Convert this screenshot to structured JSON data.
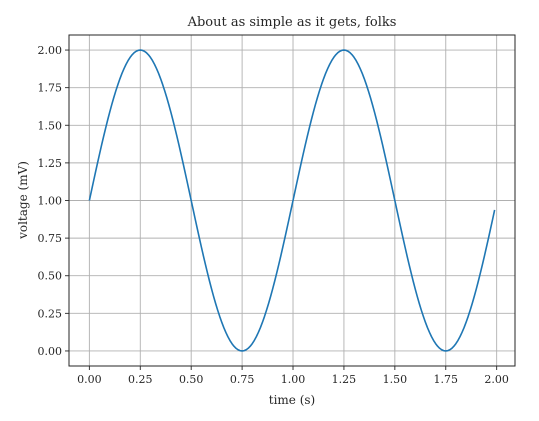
{
  "chart_data": {
    "type": "line",
    "title": "About as simple as it gets, folks",
    "xlabel": "time (s)",
    "ylabel": "voltage (mV)",
    "xlim": [
      -0.1,
      2.09
    ],
    "ylim": [
      -0.1,
      2.1
    ],
    "grid": true,
    "x_ticks": [
      0.0,
      0.25,
      0.5,
      0.75,
      1.0,
      1.25,
      1.5,
      1.75,
      2.0
    ],
    "x_tick_labels": [
      "0.00",
      "0.25",
      "0.50",
      "0.75",
      "1.00",
      "1.25",
      "1.50",
      "1.75",
      "2.00"
    ],
    "y_ticks": [
      0.0,
      0.25,
      0.5,
      0.75,
      1.0,
      1.25,
      1.5,
      1.75,
      2.0
    ],
    "y_tick_labels": [
      "0.00",
      "0.25",
      "0.50",
      "0.75",
      "1.00",
      "1.25",
      "1.50",
      "1.75",
      "2.00"
    ],
    "series": [
      {
        "color": "#1f77b4",
        "function": "1 + sin(2*pi*t)",
        "x_range": [
          0.0,
          1.99
        ],
        "x_step": 0.01
      }
    ]
  }
}
